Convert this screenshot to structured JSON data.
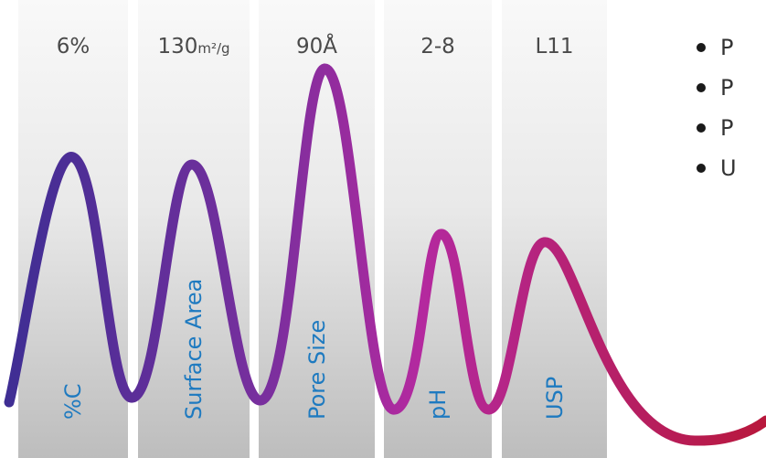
{
  "columns": [
    {
      "value": "6%",
      "unit": "",
      "label": "%C"
    },
    {
      "value": "130",
      "unit": "m²/g",
      "label": "Surface Area"
    },
    {
      "value": "90Å",
      "unit": "",
      "label": "Pore Size"
    },
    {
      "value": "2-8",
      "unit": "",
      "label": "pH"
    },
    {
      "value": "L11",
      "unit": "",
      "label": "USP"
    }
  ],
  "bullets": [
    "P",
    "P",
    "P",
    "U"
  ],
  "top_fragment": "L",
  "colors": {
    "label": "#1e7ac0",
    "value": "#4a4a4a",
    "wave_start": "#3d2e93",
    "wave_mid1": "#7a2f9e",
    "wave_mid2": "#b4299f",
    "wave_end": "#b8183c"
  }
}
